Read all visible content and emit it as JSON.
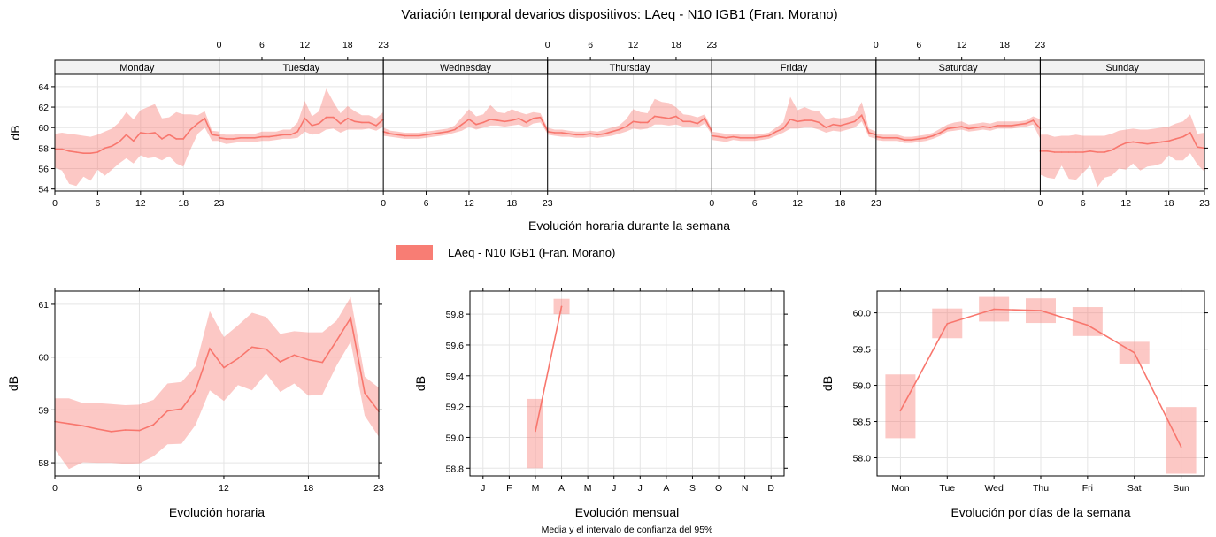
{
  "title": "Variación temporal devarios dispositivos: LAeq - N10 IGB1 (Fran. Morano)",
  "colors": {
    "line": "#F8766D",
    "band": "#F8766D",
    "band_opacity": 0.4,
    "grid": "#E5E5E5",
    "strip": "#F2F2F2"
  },
  "legend": {
    "label": "LAeq - N10 IGB1 (Fran. Morano)",
    "placement": "top-center"
  },
  "chart_data": [
    {
      "type": "line",
      "panel": "weekly",
      "xlabel": "Evolución horaria durante la semana",
      "ylabel": "dB",
      "ylim": [
        53.8,
        65.2
      ],
      "yticks": [
        54,
        56,
        58,
        60,
        62,
        64
      ],
      "hour_ticks": [
        0,
        6,
        12,
        18,
        23
      ],
      "grid": true,
      "days": [
        "Monday",
        "Tuesday",
        "Wednesday",
        "Thursday",
        "Friday",
        "Saturday",
        "Sunday"
      ],
      "series": [
        {
          "name": "LAeq - N10 IGB1 (Fran. Morano)",
          "hours": [
            0,
            1,
            2,
            3,
            4,
            5,
            6,
            7,
            8,
            9,
            10,
            11,
            12,
            13,
            14,
            15,
            16,
            17,
            18,
            19,
            20,
            21,
            22,
            23
          ],
          "by_day": [
            {
              "mean": [
                57.9,
                57.9,
                57.7,
                57.6,
                57.5,
                57.5,
                57.6,
                58.0,
                58.2,
                58.6,
                59.3,
                58.7,
                59.5,
                59.4,
                59.5,
                58.9,
                59.3,
                58.9,
                58.9,
                59.8,
                60.4,
                60.9,
                59.3,
                59.2
              ],
              "low": [
                56.1,
                55.8,
                54.5,
                54.3,
                55.2,
                54.8,
                55.9,
                55.3,
                55.9,
                56.5,
                57.0,
                56.5,
                57.3,
                57.0,
                57.1,
                56.8,
                57.2,
                56.5,
                56.2,
                57.9,
                59.4,
                60.0,
                58.7,
                58.7
              ],
              "high": [
                59.4,
                59.5,
                59.4,
                59.3,
                59.2,
                59.1,
                59.3,
                59.6,
                59.9,
                60.5,
                61.5,
                60.8,
                61.7,
                62.0,
                62.3,
                60.9,
                61.0,
                61.5,
                61.3,
                61.3,
                61.2,
                61.6,
                59.7,
                59.6
              ]
            },
            {
              "mean": [
                59.0,
                58.9,
                58.9,
                59.0,
                59.0,
                59.0,
                59.1,
                59.1,
                59.2,
                59.3,
                59.3,
                59.6,
                60.9,
                60.2,
                60.4,
                61.0,
                61.0,
                60.4,
                60.9,
                60.6,
                60.5,
                60.5,
                60.2,
                60.8
              ],
              "low": [
                58.6,
                58.4,
                58.5,
                58.6,
                58.6,
                58.6,
                58.7,
                58.7,
                58.8,
                58.9,
                58.9,
                59.0,
                59.6,
                59.3,
                59.4,
                59.8,
                59.9,
                59.5,
                59.8,
                59.8,
                59.8,
                59.9,
                59.7,
                60.1
              ],
              "high": [
                59.4,
                59.3,
                59.3,
                59.4,
                59.4,
                59.4,
                59.6,
                59.6,
                59.6,
                59.8,
                59.8,
                60.5,
                62.6,
                61.1,
                61.6,
                63.8,
                62.5,
                61.4,
                62.1,
                61.6,
                61.2,
                61.2,
                60.9,
                61.5
              ]
            },
            {
              "mean": [
                59.6,
                59.4,
                59.3,
                59.2,
                59.2,
                59.2,
                59.3,
                59.4,
                59.5,
                59.6,
                59.8,
                60.3,
                60.8,
                60.3,
                60.5,
                60.8,
                60.7,
                60.6,
                60.7,
                60.9,
                60.5,
                60.9,
                61.0,
                59.7
              ],
              "low": [
                59.2,
                59.1,
                59.0,
                58.9,
                58.9,
                58.9,
                59.0,
                59.1,
                59.2,
                59.3,
                59.5,
                59.7,
                60.1,
                59.8,
                60.0,
                60.2,
                60.2,
                60.1,
                60.2,
                60.3,
                60.0,
                60.4,
                60.5,
                59.4
              ],
              "high": [
                60.0,
                59.7,
                59.6,
                59.5,
                59.5,
                59.5,
                59.6,
                59.7,
                59.8,
                59.9,
                60.2,
                61.0,
                61.8,
                61.1,
                61.3,
                62.2,
                61.5,
                61.4,
                61.8,
                61.5,
                61.3,
                61.5,
                61.4,
                60.0
              ]
            },
            {
              "mean": [
                59.6,
                59.5,
                59.5,
                59.4,
                59.3,
                59.3,
                59.4,
                59.3,
                59.4,
                59.6,
                59.8,
                60.1,
                60.6,
                60.5,
                60.5,
                61.1,
                61.0,
                60.9,
                61.1,
                60.6,
                60.6,
                60.4,
                60.9,
                59.6
              ],
              "low": [
                59.3,
                59.2,
                59.1,
                59.1,
                59.0,
                59.0,
                59.1,
                59.0,
                59.1,
                59.2,
                59.4,
                59.6,
                59.9,
                59.8,
                59.9,
                60.3,
                60.3,
                60.2,
                60.3,
                60.1,
                60.1,
                60.0,
                60.4,
                59.3
              ],
              "high": [
                60.0,
                59.8,
                59.8,
                59.7,
                59.6,
                59.6,
                59.7,
                59.6,
                59.8,
                60.0,
                60.2,
                60.8,
                61.8,
                61.5,
                61.4,
                62.8,
                62.5,
                62.4,
                62.0,
                61.3,
                61.2,
                61.0,
                61.3,
                59.9
              ]
            },
            {
              "mean": [
                59.2,
                59.1,
                59.0,
                59.1,
                59.0,
                59.0,
                59.0,
                59.1,
                59.2,
                59.6,
                59.9,
                60.8,
                60.6,
                60.7,
                60.7,
                60.5,
                60.0,
                60.3,
                60.2,
                60.4,
                60.6,
                61.2,
                59.5,
                59.3
              ],
              "low": [
                58.8,
                58.7,
                58.6,
                58.8,
                58.7,
                58.7,
                58.7,
                58.8,
                58.9,
                59.2,
                59.5,
                59.9,
                59.9,
                60.0,
                60.0,
                59.8,
                59.5,
                59.7,
                59.6,
                59.8,
                60.0,
                60.6,
                59.1,
                58.9
              ],
              "high": [
                59.6,
                59.5,
                59.4,
                59.4,
                59.3,
                59.3,
                59.3,
                59.4,
                59.5,
                60.0,
                60.5,
                63.0,
                61.7,
                62.0,
                61.7,
                61.6,
                60.8,
                61.0,
                60.9,
                61.0,
                61.2,
                62.5,
                59.9,
                59.6
              ]
            },
            {
              "mean": [
                59.1,
                59.0,
                59.0,
                59.0,
                58.8,
                58.8,
                58.9,
                59.0,
                59.2,
                59.5,
                59.9,
                60.0,
                60.1,
                59.9,
                60.0,
                60.1,
                60.0,
                60.2,
                60.2,
                60.2,
                60.3,
                60.4,
                60.7,
                59.9
              ],
              "low": [
                58.8,
                58.7,
                58.7,
                58.7,
                58.5,
                58.5,
                58.6,
                58.7,
                58.9,
                59.2,
                59.6,
                59.7,
                59.8,
                59.6,
                59.7,
                59.8,
                59.7,
                59.9,
                59.9,
                59.9,
                60.0,
                60.1,
                60.3,
                58.9
              ],
              "high": [
                59.4,
                59.3,
                59.3,
                59.3,
                59.1,
                59.1,
                59.2,
                59.3,
                59.5,
                59.9,
                60.3,
                60.5,
                60.6,
                60.3,
                60.4,
                60.5,
                60.4,
                60.6,
                60.6,
                60.6,
                60.6,
                60.7,
                61.1,
                60.8
              ]
            },
            {
              "mean": [
                57.7,
                57.7,
                57.6,
                57.6,
                57.6,
                57.6,
                57.6,
                57.7,
                57.6,
                57.6,
                57.8,
                58.2,
                58.5,
                58.6,
                58.5,
                58.4,
                58.5,
                58.6,
                58.7,
                58.9,
                59.1,
                59.5,
                58.1,
                58.0
              ],
              "low": [
                55.4,
                55.1,
                55.0,
                56.3,
                55.0,
                54.9,
                55.6,
                56.3,
                54.2,
                55.1,
                55.3,
                56.0,
                55.9,
                56.5,
                55.8,
                56.2,
                56.3,
                56.5,
                57.3,
                56.8,
                56.8,
                57.5,
                56.4,
                55.7
              ],
              "high": [
                59.3,
                59.3,
                59.1,
                59.2,
                59.2,
                59.3,
                59.2,
                59.2,
                59.2,
                59.2,
                59.4,
                59.7,
                59.8,
                59.9,
                59.8,
                59.8,
                59.9,
                60.0,
                60.1,
                60.4,
                60.6,
                61.3,
                59.4,
                59.5
              ]
            }
          ]
        }
      ]
    },
    {
      "type": "line",
      "panel": "hourly",
      "xlabel": "Evolución horaria",
      "ylabel": "dB",
      "ylim": [
        57.75,
        61.25
      ],
      "yticks": [
        58,
        59,
        60,
        61
      ],
      "xticks": [
        0,
        6,
        12,
        18,
        23
      ],
      "grid": true,
      "x": [
        0,
        1,
        2,
        3,
        4,
        5,
        6,
        7,
        8,
        9,
        10,
        11,
        12,
        13,
        14,
        15,
        16,
        17,
        18,
        19,
        20,
        21,
        22,
        23
      ],
      "series": [
        {
          "name": "LAeq - N10 IGB1 (Fran. Morano)",
          "values": [
            58.78,
            58.74,
            58.7,
            58.64,
            58.59,
            58.62,
            58.61,
            58.72,
            58.98,
            59.02,
            59.38,
            60.16,
            59.8,
            59.97,
            60.19,
            60.15,
            59.91,
            60.04,
            59.95,
            59.9,
            60.31,
            60.74,
            59.32,
            58.97
          ],
          "low": [
            58.25,
            57.88,
            58.01,
            58.0,
            58.0,
            57.98,
            57.99,
            58.12,
            58.35,
            58.36,
            58.72,
            59.37,
            59.17,
            59.47,
            59.37,
            59.69,
            59.34,
            59.5,
            59.27,
            59.29,
            59.84,
            60.29,
            58.89,
            58.49
          ],
          "high": [
            59.22,
            59.22,
            59.13,
            59.13,
            59.11,
            59.09,
            59.1,
            59.19,
            59.5,
            59.53,
            59.83,
            60.87,
            60.38,
            60.6,
            60.84,
            60.76,
            60.44,
            60.49,
            60.47,
            60.47,
            60.69,
            61.14,
            59.63,
            59.42
          ]
        }
      ]
    },
    {
      "type": "line",
      "panel": "monthly",
      "xlabel": "Evolución mensual",
      "subtitle": "Media y el intervalo de confianza del 95%",
      "ylabel": "dB",
      "ylim": [
        58.75,
        59.95
      ],
      "yticks": [
        58.8,
        59.0,
        59.2,
        59.4,
        59.6,
        59.8
      ],
      "categories": [
        "J",
        "F",
        "M",
        "A",
        "M",
        "J",
        "J",
        "A",
        "S",
        "O",
        "N",
        "D"
      ],
      "grid": true,
      "series": [
        {
          "name": "LAeq - N10 IGB1 (Fran. Morano)",
          "values": [
            null,
            null,
            59.04,
            59.85,
            null,
            null,
            null,
            null,
            null,
            null,
            null,
            null
          ],
          "low": [
            null,
            null,
            58.8,
            59.8,
            null,
            null,
            null,
            null,
            null,
            null,
            null,
            null
          ],
          "high": [
            null,
            null,
            59.25,
            59.9,
            null,
            null,
            null,
            null,
            null,
            null,
            null,
            null
          ]
        }
      ]
    },
    {
      "type": "line",
      "panel": "weekday",
      "xlabel": "Evolución por días de la semana",
      "ylabel": "dB",
      "ylim": [
        57.75,
        60.3
      ],
      "yticks": [
        58.0,
        58.5,
        59.0,
        59.5,
        60.0
      ],
      "categories": [
        "Mon",
        "Tue",
        "Wed",
        "Thu",
        "Fri",
        "Sat",
        "Sun"
      ],
      "grid": true,
      "series": [
        {
          "name": "LAeq - N10 IGB1 (Fran. Morano)",
          "values": [
            58.65,
            59.85,
            60.05,
            60.03,
            59.83,
            59.45,
            58.15
          ],
          "low": [
            58.27,
            59.65,
            59.88,
            59.86,
            59.68,
            59.3,
            57.78
          ],
          "high": [
            59.15,
            60.06,
            60.22,
            60.2,
            60.08,
            59.6,
            58.7
          ]
        }
      ]
    }
  ]
}
